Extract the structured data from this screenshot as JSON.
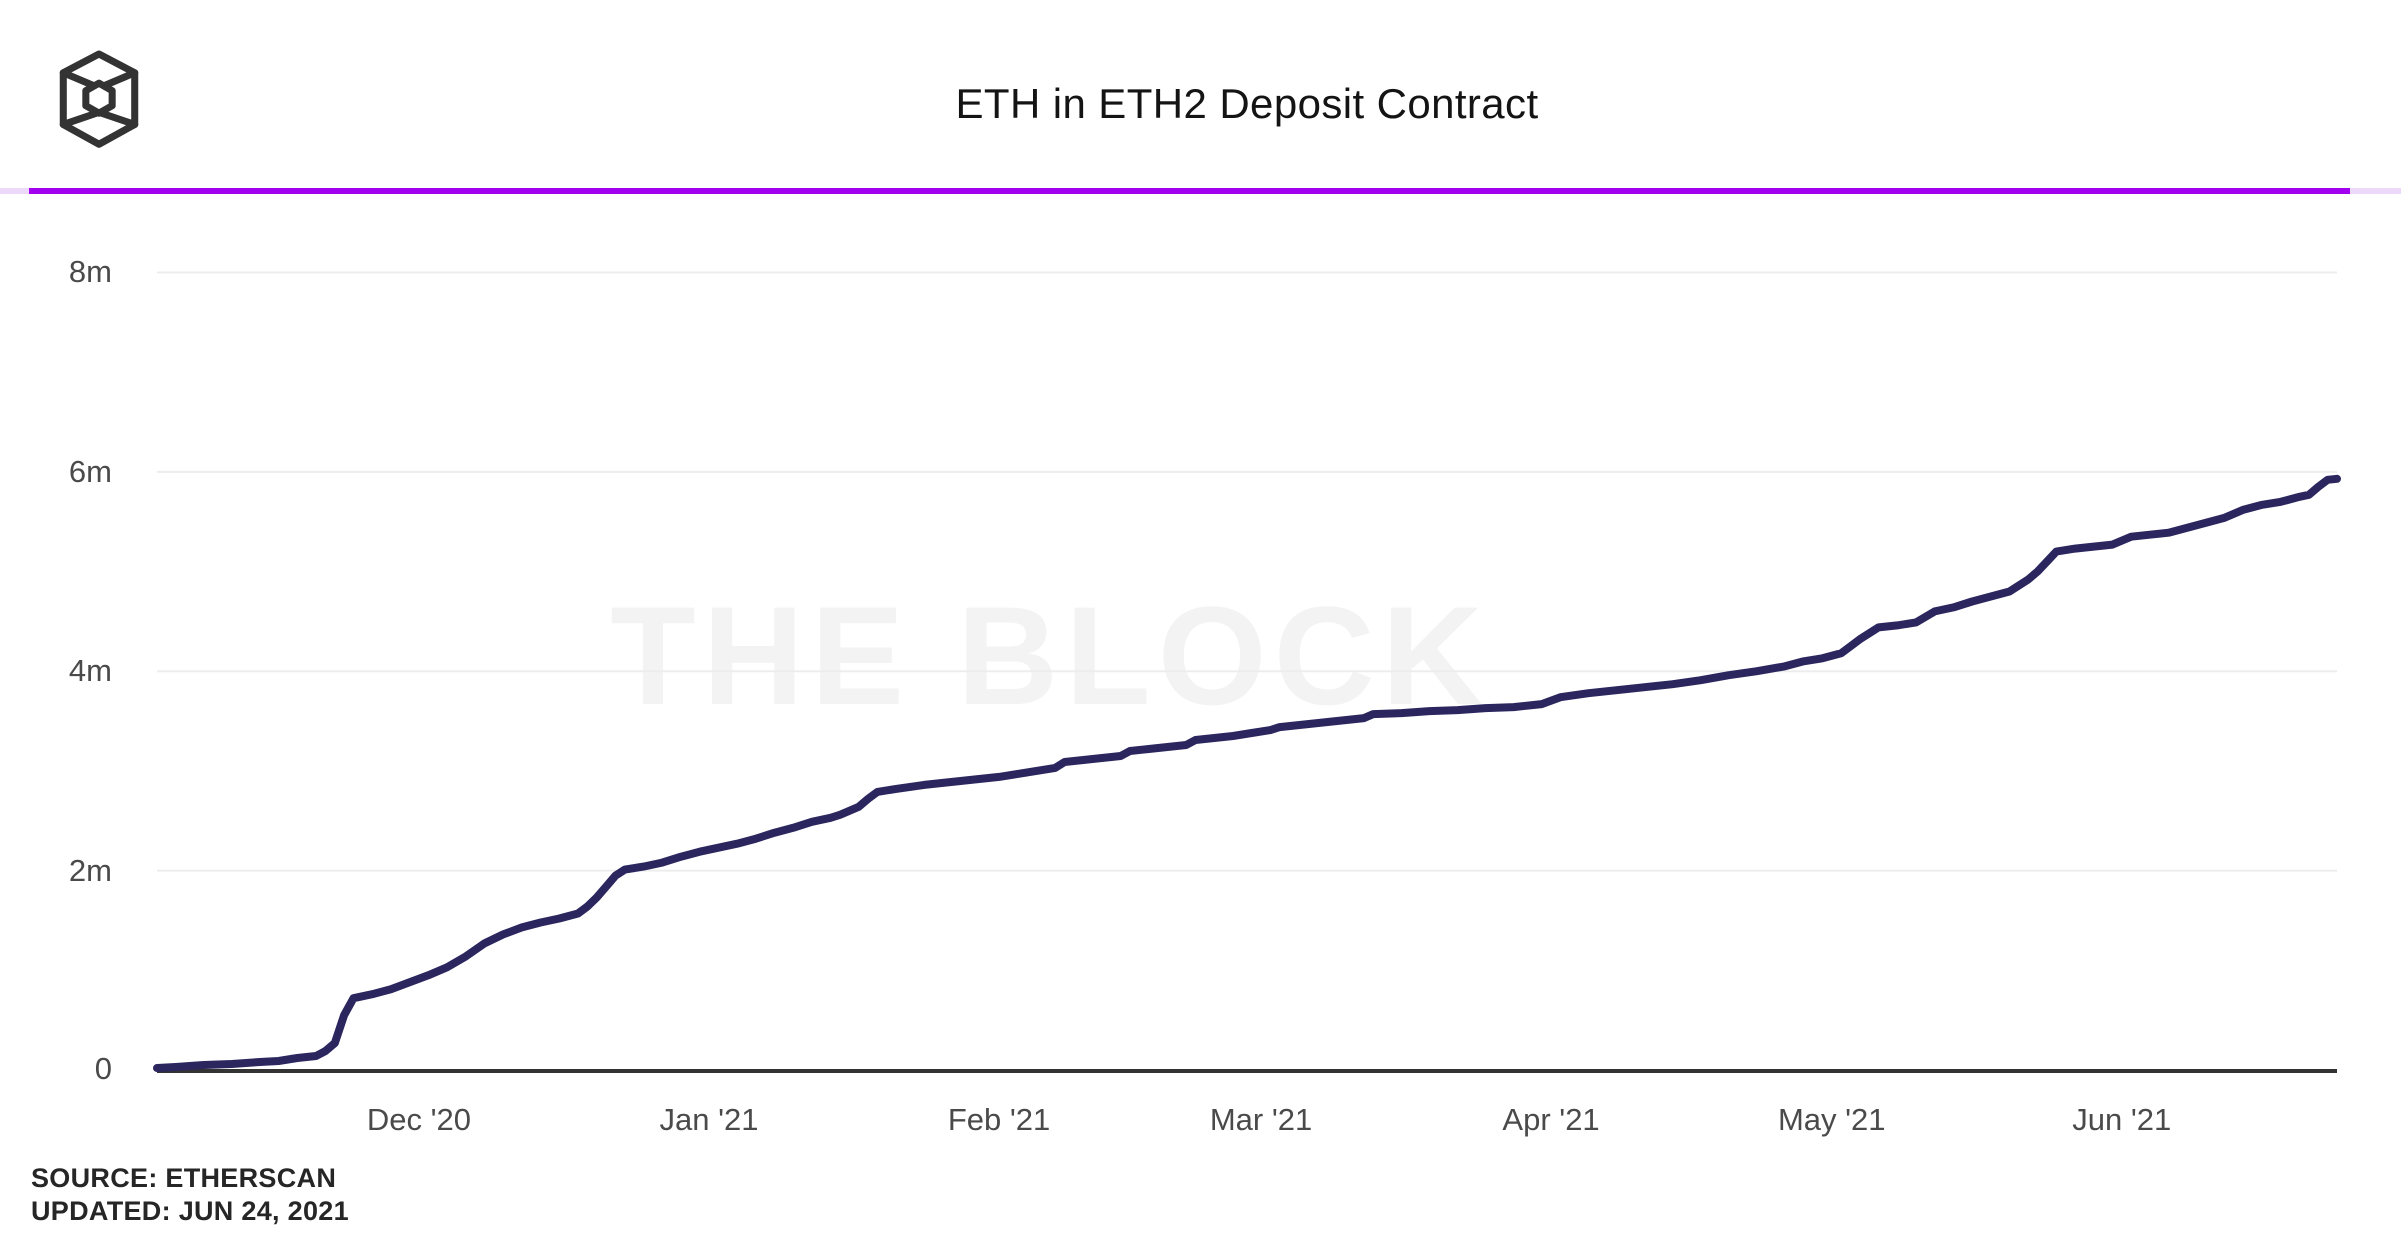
{
  "header": {
    "title": "ETH in ETH2 Deposit Contract",
    "logo": "the-block-cube-logo"
  },
  "watermark": {
    "text": "THE BLOCK"
  },
  "footer": {
    "source_line": "SOURCE: ETHERSCAN",
    "updated_line": "UPDATED: JUN 24, 2021"
  },
  "colors": {
    "accent_rule": "#a201f0",
    "accent_rule_faded": "#ecd9fa",
    "line": "#2b265e",
    "axis": "#333333",
    "gridline": "#ededed",
    "tick_text": "#4a4a4a",
    "watermark": "#f3f3f3"
  },
  "chart_data": {
    "type": "line",
    "title": "ETH in ETH2 Deposit Contract",
    "x_domain": [
      "2020-11-03",
      "2021-06-24"
    ],
    "y_domain": [
      0,
      8
    ],
    "y_unit": "millions of ETH",
    "grid": "horizontal",
    "legend": "none",
    "y_ticks": [
      {
        "v": 0,
        "label": "0"
      },
      {
        "v": 2,
        "label": "2m"
      },
      {
        "v": 4,
        "label": "4m"
      },
      {
        "v": 6,
        "label": "6m"
      },
      {
        "v": 8,
        "label": "8m"
      }
    ],
    "x_ticks": [
      {
        "date": "2020-12-01",
        "label": "Dec '20"
      },
      {
        "date": "2021-01-01",
        "label": "Jan '21"
      },
      {
        "date": "2021-02-01",
        "label": "Feb '21"
      },
      {
        "date": "2021-03-01",
        "label": "Mar '21"
      },
      {
        "date": "2021-04-01",
        "label": "Apr '21"
      },
      {
        "date": "2021-05-01",
        "label": "May '21"
      },
      {
        "date": "2021-06-01",
        "label": "Jun '21"
      }
    ],
    "series": [
      {
        "name": "ETH in ETH2 deposit contract",
        "color": "#2b265e",
        "points": [
          [
            "2020-11-03",
            0.02
          ],
          [
            "2020-11-05",
            0.03
          ],
          [
            "2020-11-08",
            0.05
          ],
          [
            "2020-11-11",
            0.06
          ],
          [
            "2020-11-14",
            0.08
          ],
          [
            "2020-11-16",
            0.09
          ],
          [
            "2020-11-18",
            0.12
          ],
          [
            "2020-11-20",
            0.14
          ],
          [
            "2020-11-21",
            0.19
          ],
          [
            "2020-11-22",
            0.27
          ],
          [
            "2020-11-23",
            0.55
          ],
          [
            "2020-11-24",
            0.72
          ],
          [
            "2020-11-26",
            0.76
          ],
          [
            "2020-11-28",
            0.81
          ],
          [
            "2020-11-30",
            0.88
          ],
          [
            "2020-12-02",
            0.95
          ],
          [
            "2020-12-04",
            1.03
          ],
          [
            "2020-12-06",
            1.14
          ],
          [
            "2020-12-08",
            1.27
          ],
          [
            "2020-12-10",
            1.36
          ],
          [
            "2020-12-12",
            1.43
          ],
          [
            "2020-12-14",
            1.48
          ],
          [
            "2020-12-16",
            1.52
          ],
          [
            "2020-12-18",
            1.57
          ],
          [
            "2020-12-19",
            1.64
          ],
          [
            "2020-12-20",
            1.73
          ],
          [
            "2020-12-21",
            1.84
          ],
          [
            "2020-12-22",
            1.95
          ],
          [
            "2020-12-23",
            2.01
          ],
          [
            "2020-12-25",
            2.04
          ],
          [
            "2020-12-27",
            2.08
          ],
          [
            "2020-12-29",
            2.14
          ],
          [
            "2020-12-31",
            2.19
          ],
          [
            "2021-01-02",
            2.23
          ],
          [
            "2021-01-04",
            2.27
          ],
          [
            "2021-01-06",
            2.32
          ],
          [
            "2021-01-08",
            2.38
          ],
          [
            "2021-01-10",
            2.43
          ],
          [
            "2021-01-12",
            2.49
          ],
          [
            "2021-01-14",
            2.53
          ],
          [
            "2021-01-15",
            2.56
          ],
          [
            "2021-01-16",
            2.6
          ],
          [
            "2021-01-17",
            2.64
          ],
          [
            "2021-01-18",
            2.72
          ],
          [
            "2021-01-19",
            2.79
          ],
          [
            "2021-01-21",
            2.82
          ],
          [
            "2021-01-24",
            2.86
          ],
          [
            "2021-01-27",
            2.89
          ],
          [
            "2021-01-30",
            2.92
          ],
          [
            "2021-02-01",
            2.94
          ],
          [
            "2021-02-03",
            2.97
          ],
          [
            "2021-02-05",
            3.0
          ],
          [
            "2021-02-07",
            3.03
          ],
          [
            "2021-02-08",
            3.09
          ],
          [
            "2021-02-10",
            3.11
          ],
          [
            "2021-02-12",
            3.13
          ],
          [
            "2021-02-14",
            3.15
          ],
          [
            "2021-02-15",
            3.2
          ],
          [
            "2021-02-17",
            3.22
          ],
          [
            "2021-02-19",
            3.24
          ],
          [
            "2021-02-21",
            3.26
          ],
          [
            "2021-02-22",
            3.31
          ],
          [
            "2021-02-24",
            3.33
          ],
          [
            "2021-02-26",
            3.35
          ],
          [
            "2021-02-28",
            3.38
          ],
          [
            "2021-03-02",
            3.41
          ],
          [
            "2021-03-03",
            3.44
          ],
          [
            "2021-03-06",
            3.47
          ],
          [
            "2021-03-09",
            3.5
          ],
          [
            "2021-03-12",
            3.53
          ],
          [
            "2021-03-13",
            3.57
          ],
          [
            "2021-03-16",
            3.58
          ],
          [
            "2021-03-19",
            3.6
          ],
          [
            "2021-03-22",
            3.61
          ],
          [
            "2021-03-25",
            3.63
          ],
          [
            "2021-03-28",
            3.64
          ],
          [
            "2021-03-31",
            3.67
          ],
          [
            "2021-04-02",
            3.74
          ],
          [
            "2021-04-05",
            3.78
          ],
          [
            "2021-04-08",
            3.81
          ],
          [
            "2021-04-11",
            3.84
          ],
          [
            "2021-04-14",
            3.87
          ],
          [
            "2021-04-17",
            3.91
          ],
          [
            "2021-04-20",
            3.96
          ],
          [
            "2021-04-23",
            4.0
          ],
          [
            "2021-04-26",
            4.05
          ],
          [
            "2021-04-28",
            4.1
          ],
          [
            "2021-04-30",
            4.13
          ],
          [
            "2021-05-02",
            4.18
          ],
          [
            "2021-05-03",
            4.25
          ],
          [
            "2021-05-04",
            4.32
          ],
          [
            "2021-05-06",
            4.44
          ],
          [
            "2021-05-08",
            4.46
          ],
          [
            "2021-05-10",
            4.49
          ],
          [
            "2021-05-12",
            4.6
          ],
          [
            "2021-05-14",
            4.64
          ],
          [
            "2021-05-16",
            4.7
          ],
          [
            "2021-05-18",
            4.75
          ],
          [
            "2021-05-20",
            4.8
          ],
          [
            "2021-05-22",
            4.92
          ],
          [
            "2021-05-23",
            5.0
          ],
          [
            "2021-05-25",
            5.2
          ],
          [
            "2021-05-27",
            5.23
          ],
          [
            "2021-05-29",
            5.25
          ],
          [
            "2021-05-31",
            5.27
          ],
          [
            "2021-06-02",
            5.35
          ],
          [
            "2021-06-04",
            5.37
          ],
          [
            "2021-06-06",
            5.39
          ],
          [
            "2021-06-08",
            5.44
          ],
          [
            "2021-06-10",
            5.49
          ],
          [
            "2021-06-12",
            5.54
          ],
          [
            "2021-06-14",
            5.62
          ],
          [
            "2021-06-16",
            5.67
          ],
          [
            "2021-06-18",
            5.7
          ],
          [
            "2021-06-20",
            5.75
          ],
          [
            "2021-06-21",
            5.77
          ],
          [
            "2021-06-22",
            5.85
          ],
          [
            "2021-06-23",
            5.92
          ],
          [
            "2021-06-24",
            5.93
          ]
        ]
      }
    ]
  }
}
